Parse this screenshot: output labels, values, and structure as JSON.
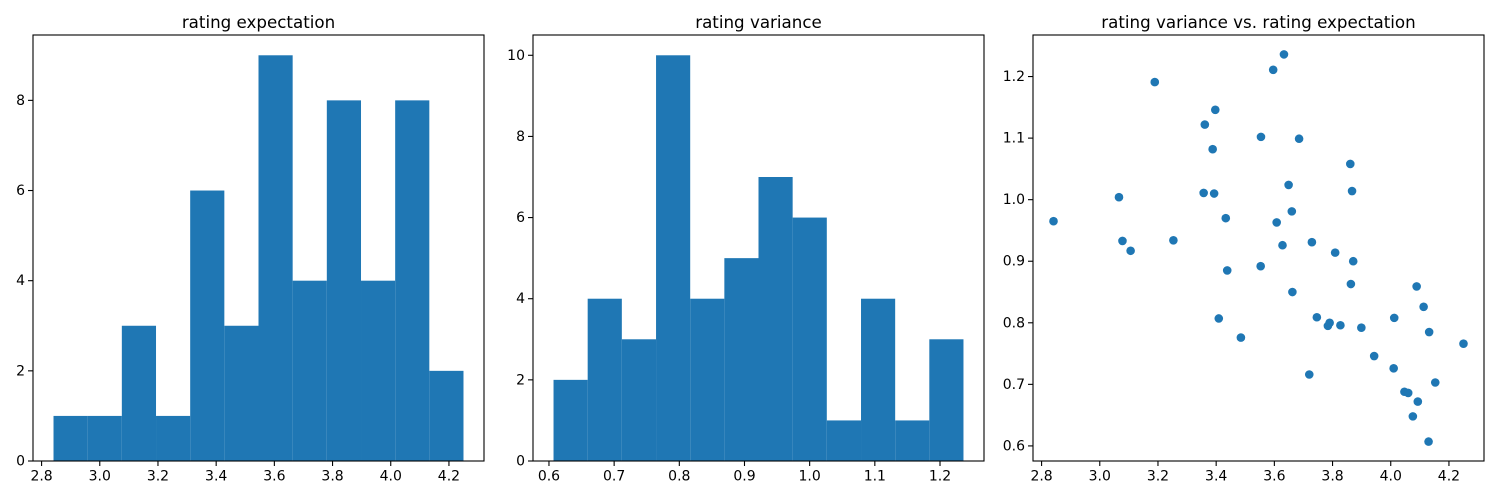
{
  "figure": {
    "background": "#ffffff",
    "accent_color": "#1f77b4",
    "text_color": "#000000"
  },
  "chart_data": [
    {
      "type": "bar",
      "title": "rating expectation",
      "xlabel": "",
      "ylabel": "",
      "bin_edges": [
        2.841,
        2.9584,
        3.0758,
        3.1933,
        3.3107,
        3.4281,
        3.5455,
        3.6629,
        3.7803,
        3.8978,
        4.0152,
        4.1326,
        4.25
      ],
      "values": [
        1,
        1,
        3,
        1,
        6,
        3,
        9,
        4,
        8,
        4,
        8,
        2
      ],
      "xlim": [
        2.7705,
        4.3205
      ],
      "ylim": [
        0,
        9.45
      ],
      "xticks": [
        2.8,
        3.0,
        3.2,
        3.4,
        3.6,
        3.8,
        4.0,
        4.2
      ],
      "xtick_labels": [
        "2.8",
        "3.0",
        "3.2",
        "3.4",
        "3.6",
        "3.8",
        "4.0",
        "4.2"
      ],
      "yticks": [
        0,
        2,
        4,
        6,
        8
      ],
      "ytick_labels": [
        "0",
        "2",
        "4",
        "6",
        "8"
      ],
      "bar_color": "#1f77b4",
      "grid": false,
      "legend": null
    },
    {
      "type": "bar",
      "title": "rating variance",
      "xlabel": "",
      "ylabel": "",
      "bin_edges": [
        0.607,
        0.6594,
        0.7118,
        0.7643,
        0.8167,
        0.8691,
        0.9215,
        0.9739,
        1.0263,
        1.0788,
        1.1312,
        1.1836,
        1.236
      ],
      "values": [
        2,
        4,
        3,
        10,
        4,
        5,
        7,
        6,
        1,
        4,
        1,
        3
      ],
      "xlim": [
        0.5755,
        1.2675
      ],
      "ylim": [
        0,
        10.5
      ],
      "xticks": [
        0.6,
        0.7,
        0.8,
        0.9,
        1.0,
        1.1,
        1.2
      ],
      "xtick_labels": [
        "0.6",
        "0.7",
        "0.8",
        "0.9",
        "1.0",
        "1.1",
        "1.2"
      ],
      "yticks": [
        0,
        2,
        4,
        6,
        8,
        10
      ],
      "ytick_labels": [
        "0",
        "2",
        "4",
        "6",
        "8",
        "10"
      ],
      "bar_color": "#1f77b4",
      "grid": false,
      "legend": null
    },
    {
      "type": "scatter",
      "title": "rating variance vs. rating expectation",
      "xlabel": "",
      "ylabel": "",
      "points": [
        [
          2.841,
          0.965
        ],
        [
          3.066,
          1.004
        ],
        [
          3.078,
          0.933
        ],
        [
          3.106,
          0.917
        ],
        [
          3.189,
          1.191
        ],
        [
          3.253,
          0.934
        ],
        [
          3.357,
          1.011
        ],
        [
          3.361,
          1.122
        ],
        [
          3.388,
          1.082
        ],
        [
          3.393,
          1.01
        ],
        [
          3.397,
          1.146
        ],
        [
          3.409,
          0.807
        ],
        [
          3.433,
          0.97
        ],
        [
          3.438,
          0.885
        ],
        [
          3.485,
          0.776
        ],
        [
          3.553,
          0.892
        ],
        [
          3.554,
          1.102
        ],
        [
          3.596,
          1.211
        ],
        [
          3.608,
          0.963
        ],
        [
          3.628,
          0.926
        ],
        [
          3.633,
          1.236
        ],
        [
          3.649,
          1.024
        ],
        [
          3.66,
          0.981
        ],
        [
          3.662,
          0.85
        ],
        [
          3.685,
          1.099
        ],
        [
          3.72,
          0.716
        ],
        [
          3.729,
          0.931
        ],
        [
          3.746,
          0.809
        ],
        [
          3.784,
          0.795
        ],
        [
          3.79,
          0.8
        ],
        [
          3.809,
          0.914
        ],
        [
          3.827,
          0.796
        ],
        [
          3.861,
          1.058
        ],
        [
          3.863,
          0.863
        ],
        [
          3.867,
          1.014
        ],
        [
          3.871,
          0.9
        ],
        [
          3.899,
          0.792
        ],
        [
          3.943,
          0.746
        ],
        [
          4.01,
          0.726
        ],
        [
          4.012,
          0.808
        ],
        [
          4.047,
          0.688
        ],
        [
          4.06,
          0.686
        ],
        [
          4.076,
          0.648
        ],
        [
          4.089,
          0.859
        ],
        [
          4.093,
          0.672
        ],
        [
          4.113,
          0.826
        ],
        [
          4.13,
          0.607
        ],
        [
          4.132,
          0.785
        ],
        [
          4.153,
          0.703
        ],
        [
          4.25,
          0.766
        ]
      ],
      "xlim": [
        2.7705,
        4.3205
      ],
      "ylim": [
        0.5755,
        1.2675
      ],
      "xticks": [
        2.8,
        3.0,
        3.2,
        3.4,
        3.6,
        3.8,
        4.0,
        4.2
      ],
      "xtick_labels": [
        "2.8",
        "3.0",
        "3.2",
        "3.4",
        "3.6",
        "3.8",
        "4.0",
        "4.2"
      ],
      "yticks": [
        0.6,
        0.7,
        0.8,
        0.9,
        1.0,
        1.1,
        1.2
      ],
      "ytick_labels": [
        "0.6",
        "0.7",
        "0.8",
        "0.9",
        "1.0",
        "1.1",
        "1.2"
      ],
      "marker_color": "#1f77b4",
      "marker_radius": 4.3,
      "grid": false,
      "legend": null
    }
  ]
}
